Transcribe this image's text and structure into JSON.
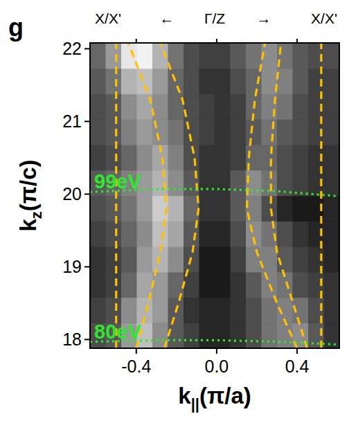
{
  "chart_data": {
    "type": "heatmap",
    "panel_letter": "g",
    "top_labels": [
      "X/X'",
      "←",
      "Γ/Z",
      "→",
      "X/X'"
    ],
    "xlabel": [
      "k",
      "||",
      "(π/a)"
    ],
    "ylabel": [
      "k",
      "z",
      "(π/c)"
    ],
    "xlim": [
      -0.63,
      0.61
    ],
    "ylim": [
      17.88,
      22.08
    ],
    "xticks": [
      {
        "value": -0.4,
        "label": "-0.4"
      },
      {
        "value": 0,
        "label": "0.0"
      },
      {
        "value": 0.4,
        "label": "0.4"
      }
    ],
    "yticks": [
      18,
      19,
      20,
      21,
      22
    ],
    "heatmap": {
      "x_edges": [
        -0.63,
        -0.5525,
        -0.475,
        -0.3975,
        -0.32,
        -0.2425,
        -0.165,
        -0.0875,
        -0.01,
        0.0675,
        0.145,
        0.2225,
        0.3,
        0.3775,
        0.455,
        0.5325,
        0.61
      ],
      "y_edges": [
        17.88,
        18.23,
        18.58,
        18.93,
        19.28,
        19.63,
        19.98,
        20.33,
        20.68,
        21.03,
        21.38,
        21.73,
        22.08
      ],
      "color_range": [
        0,
        1
      ],
      "values": [
        [
          0.3,
          0.35,
          0.6,
          0.75,
          0.55,
          0.35,
          0.25,
          0.15,
          0.15,
          0.2,
          0.3,
          0.45,
          0.5,
          0.55,
          0.35,
          0.2
        ],
        [
          0.25,
          0.3,
          0.55,
          0.7,
          0.6,
          0.35,
          0.2,
          0.15,
          0.15,
          0.2,
          0.3,
          0.45,
          0.5,
          0.45,
          0.3,
          0.2
        ],
        [
          0.2,
          0.25,
          0.4,
          0.65,
          0.6,
          0.4,
          0.25,
          0.1,
          0.1,
          0.2,
          0.35,
          0.5,
          0.45,
          0.3,
          0.25,
          0.2
        ],
        [
          0.2,
          0.25,
          0.35,
          0.6,
          0.7,
          0.55,
          0.3,
          0.1,
          0.1,
          0.25,
          0.5,
          0.5,
          0.35,
          0.25,
          0.2,
          0.15
        ],
        [
          0.25,
          0.3,
          0.4,
          0.55,
          0.75,
          0.65,
          0.35,
          0.15,
          0.15,
          0.3,
          0.55,
          0.45,
          0.3,
          0.2,
          0.15,
          0.15
        ],
        [
          0.3,
          0.35,
          0.45,
          0.6,
          0.8,
          0.7,
          0.4,
          0.2,
          0.2,
          0.35,
          0.5,
          0.3,
          0.15,
          0.1,
          0.1,
          0.15
        ],
        [
          0.35,
          0.4,
          0.5,
          0.6,
          0.7,
          0.55,
          0.35,
          0.2,
          0.2,
          0.35,
          0.55,
          0.45,
          0.3,
          0.25,
          0.2,
          0.2
        ],
        [
          0.25,
          0.3,
          0.4,
          0.55,
          0.65,
          0.5,
          0.3,
          0.2,
          0.2,
          0.25,
          0.4,
          0.4,
          0.3,
          0.25,
          0.2,
          0.2
        ],
        [
          0.3,
          0.35,
          0.5,
          0.6,
          0.55,
          0.45,
          0.3,
          0.25,
          0.2,
          0.25,
          0.35,
          0.45,
          0.35,
          0.3,
          0.25,
          0.25
        ],
        [
          0.3,
          0.35,
          0.55,
          0.65,
          0.55,
          0.4,
          0.3,
          0.25,
          0.2,
          0.25,
          0.4,
          0.5,
          0.45,
          0.3,
          0.25,
          0.25
        ],
        [
          0.35,
          0.45,
          0.7,
          0.75,
          0.6,
          0.4,
          0.3,
          0.2,
          0.2,
          0.3,
          0.4,
          0.55,
          0.5,
          0.35,
          0.25,
          0.25
        ],
        [
          0.4,
          0.6,
          0.9,
          0.95,
          0.7,
          0.45,
          0.3,
          0.25,
          0.25,
          0.35,
          0.45,
          0.55,
          0.45,
          0.35,
          0.3,
          0.3
        ]
      ]
    },
    "series": [
      {
        "color": "#ffc000",
        "line_style": "dashed",
        "x": [
          -0.5,
          -0.5
        ],
        "y": [
          17.88,
          22.08
        ]
      },
      {
        "color": "#ffc000",
        "line_style": "dashed",
        "x": [
          -0.4,
          -0.34,
          -0.28,
          -0.25,
          -0.27,
          -0.33,
          -0.44
        ],
        "y": [
          17.88,
          18.5,
          19.2,
          19.8,
          20.5,
          21.3,
          22.08
        ]
      },
      {
        "color": "#ffc000",
        "line_style": "dashed",
        "x": [
          -0.26,
          -0.19,
          -0.12,
          -0.09,
          -0.11,
          -0.17,
          -0.28
        ],
        "y": [
          17.88,
          18.5,
          19.2,
          19.8,
          20.5,
          21.3,
          22.08
        ]
      },
      {
        "color": "#ffc000",
        "line_style": "dashed",
        "x": [
          0.4,
          0.3,
          0.2,
          0.15,
          0.16,
          0.19,
          0.24
        ],
        "y": [
          17.88,
          18.5,
          19.2,
          19.8,
          20.5,
          21.3,
          22.08
        ]
      },
      {
        "color": "#ffc000",
        "line_style": "dashed",
        "x": [
          0.45,
          0.38,
          0.3,
          0.27,
          0.27,
          0.29,
          0.32
        ],
        "y": [
          17.88,
          18.5,
          19.2,
          19.8,
          20.5,
          21.3,
          22.08
        ]
      },
      {
        "color": "#ffc000",
        "line_style": "dashed",
        "x": [
          0.52,
          0.52
        ],
        "y": [
          17.88,
          22.08
        ]
      },
      {
        "name": "99eV",
        "color": "#2ee82e",
        "line_style": "dotted",
        "x": [
          -0.63,
          -0.3,
          0,
          0.3,
          0.61
        ],
        "y": [
          20.03,
          20.07,
          20.07,
          20.04,
          19.97
        ]
      },
      {
        "name": "80eV",
        "color": "#2ee82e",
        "line_style": "dotted",
        "x": [
          -0.63,
          -0.3,
          0,
          0.3,
          0.61
        ],
        "y": [
          17.97,
          17.99,
          17.99,
          17.97,
          17.93
        ]
      }
    ],
    "tick_labels": true
  }
}
